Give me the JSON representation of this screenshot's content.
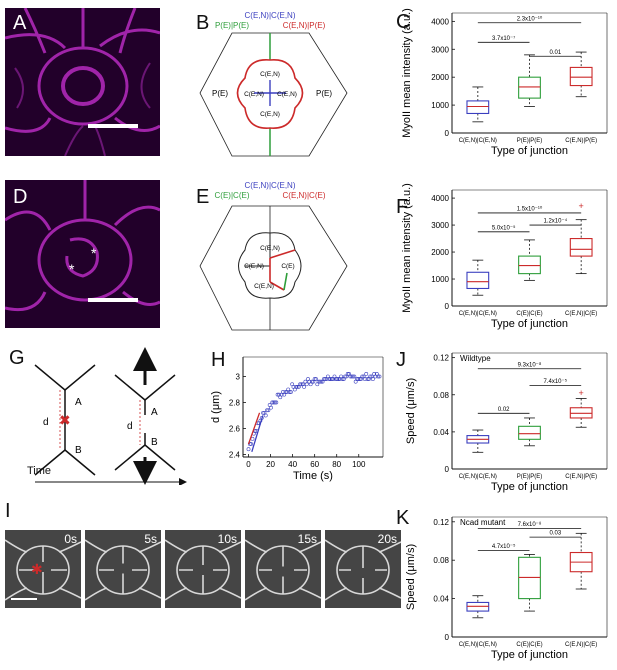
{
  "labels": {
    "A": "A",
    "B": "B",
    "C": "C",
    "D": "D",
    "E": "E",
    "F": "F",
    "G": "G",
    "H": "H",
    "I": "I",
    "J": "J",
    "K": "K"
  },
  "diagram_B": {
    "legend": [
      "C(E,N)|C(E,N)",
      "P(E)|P(E)",
      "C(E,N)|P(E)"
    ],
    "cells": [
      "C(E,N)",
      "C(E,N)",
      "C(E,N)",
      "C(E,N)",
      "P(E)",
      "P(E)"
    ]
  },
  "diagram_E": {
    "legend": [
      "C(E,N)|C(E,N)",
      "C(E)|C(E)",
      "C(E,N)|C(E)"
    ],
    "cells": [
      "C(E,N)",
      "C(E,N)",
      "C(E,N)",
      "C(E)"
    ]
  },
  "diagram_G": {
    "A": "A",
    "B": "B",
    "d1": "d",
    "d2": "d",
    "xlabel": "Time"
  },
  "series_colors": {
    "blue": "#3a3fbf",
    "green": "#2e9e3a",
    "red": "#cc2a2a"
  },
  "chart_data": [
    {
      "id": "C",
      "type": "box",
      "ylabel": "MyoII mean intensity (a.u.)",
      "xlabel": "Type of junction",
      "categories": [
        "C(E,N)|C(E,N)",
        "P(E)|P(E)",
        "C(E,N)|P(E)"
      ],
      "yticks": [
        0,
        1000,
        2000,
        3000,
        4000
      ],
      "ylim": [
        0,
        4300
      ],
      "boxes": [
        {
          "min": 400,
          "q1": 700,
          "median": 950,
          "q3": 1150,
          "max": 1650
        },
        {
          "min": 950,
          "q1": 1250,
          "median": 1650,
          "q3": 2000,
          "max": 2800
        },
        {
          "min": 1300,
          "q1": 1700,
          "median": 2000,
          "q3": 2350,
          "max": 2900
        }
      ],
      "outliers": [],
      "significance": [
        {
          "from": 0,
          "to": 2,
          "y": 3950,
          "label": "2.3x10⁻¹⁰"
        },
        {
          "from": 0,
          "to": 1,
          "y": 3250,
          "label": "3.7x10⁻⁷"
        },
        {
          "from": 1,
          "to": 2,
          "y": 2750,
          "label": "0.01"
        }
      ]
    },
    {
      "id": "F",
      "type": "box",
      "ylabel": "MyoII mean intensity (a.u.)",
      "xlabel": "Type of junction",
      "categories": [
        "C(E,N)|C(E,N)",
        "C(E)|C(E)",
        "C(E,N)|C(E)"
      ],
      "yticks": [
        0,
        1000,
        2000,
        3000,
        4000
      ],
      "ylim": [
        0,
        4300
      ],
      "boxes": [
        {
          "min": 400,
          "q1": 650,
          "median": 900,
          "q3": 1250,
          "max": 1700
        },
        {
          "min": 950,
          "q1": 1200,
          "median": 1500,
          "q3": 1850,
          "max": 2450
        },
        {
          "min": 1200,
          "q1": 1850,
          "median": 2100,
          "q3": 2500,
          "max": 3200
        }
      ],
      "outliers": [
        {
          "box": 2,
          "value": 3700
        }
      ],
      "significance": [
        {
          "from": 0,
          "to": 2,
          "y": 3450,
          "label": "1.5x10⁻¹⁰"
        },
        {
          "from": 0,
          "to": 1,
          "y": 2750,
          "label": "5.0x10⁻⁵"
        },
        {
          "from": 1,
          "to": 2,
          "y": 3000,
          "label": "1.2x10⁻⁴"
        }
      ]
    },
    {
      "id": "H",
      "type": "scatter",
      "xlabel": "Time (s)",
      "ylabel": "d (μm)",
      "xticks": [
        0,
        20,
        40,
        60,
        80,
        100
      ],
      "yticks": [
        2.4,
        2.6,
        2.8,
        3.0
      ],
      "xlim": [
        -5,
        122
      ],
      "ylim": [
        2.38,
        3.15
      ],
      "fit_lines": [
        {
          "color": "red",
          "points": [
            [
              0,
              2.48
            ],
            [
              10,
              2.72
            ]
          ]
        },
        {
          "color": "blue",
          "points": [
            [
              3,
              2.42
            ],
            [
              13,
              2.7
            ]
          ]
        }
      ]
    },
    {
      "id": "J",
      "type": "box",
      "title": "Wildtype",
      "ylabel": "Speed (μm/s)",
      "xlabel": "Type of junction",
      "categories": [
        "C(E,N)|C(E,N)",
        "P(E)|P(E)",
        "C(E,N)|P(E)"
      ],
      "yticks": [
        0,
        0.04,
        0.08,
        0.12
      ],
      "ylim": [
        0,
        0.125
      ],
      "boxes": [
        {
          "min": 0.018,
          "q1": 0.028,
          "median": 0.032,
          "q3": 0.036,
          "max": 0.042
        },
        {
          "min": 0.025,
          "q1": 0.032,
          "median": 0.038,
          "q3": 0.046,
          "max": 0.055
        },
        {
          "min": 0.045,
          "q1": 0.055,
          "median": 0.06,
          "q3": 0.066,
          "max": 0.076
        }
      ],
      "outliers": [
        {
          "box": 2,
          "value": 0.082
        }
      ],
      "significance": [
        {
          "from": 0,
          "to": 2,
          "y": 0.108,
          "label": "9.3x10⁻⁸"
        },
        {
          "from": 0,
          "to": 1,
          "y": 0.06,
          "label": "0.02"
        },
        {
          "from": 1,
          "to": 2,
          "y": 0.09,
          "label": "7.4x10⁻⁵"
        }
      ]
    },
    {
      "id": "K",
      "type": "box",
      "title": "Ncad mutant",
      "ylabel": "Speed (μm/s)",
      "xlabel": "Type of junction",
      "categories": [
        "C(E,N)|C(E,N)",
        "C(E)|C(E)",
        "C(E,N)|C(E)"
      ],
      "yticks": [
        0,
        0.04,
        0.08,
        0.12
      ],
      "ylim": [
        0,
        0.125
      ],
      "boxes": [
        {
          "min": 0.02,
          "q1": 0.027,
          "median": 0.032,
          "q3": 0.036,
          "max": 0.043
        },
        {
          "min": 0.027,
          "q1": 0.04,
          "median": 0.062,
          "q3": 0.083,
          "max": 0.086
        },
        {
          "min": 0.05,
          "q1": 0.068,
          "median": 0.078,
          "q3": 0.088,
          "max": 0.108
        }
      ],
      "outliers": [],
      "significance": [
        {
          "from": 0,
          "to": 2,
          "y": 0.113,
          "label": "7.6x10⁻⁸"
        },
        {
          "from": 0,
          "to": 1,
          "y": 0.09,
          "label": "4.7x10⁻⁵"
        },
        {
          "from": 1,
          "to": 2,
          "y": 0.104,
          "label": "0.03"
        }
      ]
    }
  ],
  "timelapse": {
    "frames": [
      "0s",
      "5s",
      "10s",
      "15s",
      "20s"
    ]
  }
}
